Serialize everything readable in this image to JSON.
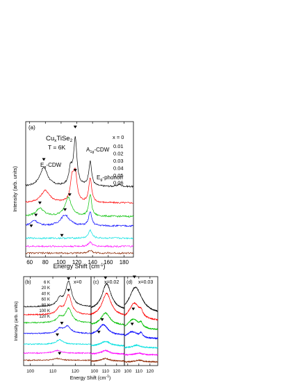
{
  "chart_data": [
    {
      "type": "line",
      "panel_label": "(a)",
      "annotations": {
        "compound": {
          "base": "Cu",
          "sub": "x",
          "rest": "TiSe",
          "sub2": "2"
        },
        "temperature": "T = 6K",
        "eg_cdw": {
          "base": "E",
          "sub": "g",
          "rest": "-CDW"
        },
        "a1g_cdw": {
          "base": "A",
          "sub": "1g",
          "rest": "-CDW"
        },
        "eg_phonon": {
          "base": "E",
          "sub": "g",
          "rest": "-phonon"
        }
      },
      "xlabel": {
        "base": "Energy Shift (cm",
        "sup": "-1",
        "rest": ")"
      },
      "ylabel": "Intensity (arb. units)",
      "xlim": [
        55,
        192
      ],
      "ylim": [
        0,
        1
      ],
      "xticks": [
        60,
        80,
        100,
        120,
        140,
        160,
        180
      ],
      "legend_title": "x = 0",
      "series": [
        {
          "name": "0.01",
          "color": "#000000",
          "baseline": 0.52,
          "peaks": [
            [
              78,
              0.14,
              6
            ],
            [
              112,
              0.12,
              2.5
            ],
            [
              118,
              0.35,
              2.5
            ],
            [
              137,
              0.18,
              2.2
            ],
            [
              174,
              0.015,
              3
            ]
          ],
          "arrows": [
            [
              78,
              0.71
            ],
            [
              118,
              0.95
            ]
          ]
        },
        {
          "name": "0.02",
          "color": "#ff0000",
          "baseline": 0.4,
          "peaks": [
            [
              80,
              0.09,
              7
            ],
            [
              114,
              0.16,
              2.8
            ],
            [
              118,
              0.2,
              2.6
            ],
            [
              137,
              0.18,
              2.2
            ]
          ],
          "arrows": [
            [
              118,
              0.63
            ]
          ]
        },
        {
          "name": "0.03",
          "color": "#00c000",
          "baseline": 0.3,
          "peaks": [
            [
              73,
              0.06,
              6
            ],
            [
              109,
              0.14,
              5
            ],
            [
              137,
              0.16,
              2.2
            ]
          ],
          "arrows": [
            [
              73,
              0.39
            ],
            [
              111,
              0.45
            ]
          ]
        },
        {
          "name": "0.04",
          "color": "#0000ff",
          "baseline": 0.23,
          "peaks": [
            [
              66,
              0.04,
              5
            ],
            [
              105,
              0.08,
              7
            ],
            [
              137,
              0.1,
              2.4
            ]
          ],
          "arrows": [
            [
              68,
              0.3
            ],
            [
              105,
              0.34
            ]
          ]
        },
        {
          "name": "0.05",
          "color": "#00e0e0",
          "baseline": 0.14,
          "peaks": [
            [
              137,
              0.06,
              2.6
            ]
          ],
          "arrows": [
            [
              62,
              0.22
            ]
          ]
        },
        {
          "name": "0.06",
          "color": "#ff00ff",
          "baseline": 0.08,
          "peaks": [
            [
              137,
              0.03,
              3
            ]
          ],
          "arrows": [
            [
              101,
              0.15
            ]
          ]
        },
        {
          "name": "",
          "color": "#8b2500",
          "baseline": 0.03,
          "peaks": [
            [
              137,
              0.02,
              3
            ]
          ],
          "arrows": []
        }
      ]
    },
    {
      "type": "line",
      "panel_label": "(b)",
      "legend_title": "x=0",
      "xlim": [
        97,
        127
      ],
      "ylim": [
        0,
        1
      ],
      "xticks": [
        100,
        110,
        120
      ],
      "ylabel": "Intensity (arb. units)",
      "series": [
        {
          "name": "6 K",
          "color": "#000000",
          "baseline": 0.66,
          "peaks": [
            [
              113,
              0.08,
              1.5
            ],
            [
              117,
              0.28,
              1.6
            ]
          ],
          "arrows": [
            [
              117,
              0.96
            ]
          ]
        },
        {
          "name": "20 K",
          "color": "#ff0000",
          "baseline": 0.57,
          "peaks": [
            [
              113,
              0.07,
              1.5
            ],
            [
              117,
              0.22,
              1.6
            ]
          ],
          "arrows": [
            [
              117,
              0.83
            ]
          ]
        },
        {
          "name": "40 K",
          "color": "#00c000",
          "baseline": 0.48,
          "peaks": [
            [
              113,
              0.06,
              1.5
            ],
            [
              117,
              0.16,
              1.7
            ]
          ],
          "arrows": []
        },
        {
          "name": "60 K",
          "color": "#0000ff",
          "baseline": 0.36,
          "peaks": [
            [
              113,
              0.05,
              1.5
            ],
            [
              116.5,
              0.08,
              1.8
            ]
          ],
          "arrows": [
            [
              114,
              0.46
            ]
          ]
        },
        {
          "name": "80 K",
          "color": "#00e0e0",
          "baseline": 0.24,
          "peaks": [
            [
              113,
              0.05,
              1.8
            ]
          ],
          "arrows": [
            [
              112,
              0.33
            ]
          ]
        },
        {
          "name": "100 K",
          "color": "#ff00ff",
          "baseline": 0.14,
          "peaks": [
            [
              112,
              0.03,
              2
            ]
          ],
          "arrows": []
        },
        {
          "name": "120 K",
          "color": "#8b2500",
          "baseline": 0.06,
          "peaks": [
            [
              112,
              0.02,
              2
            ]
          ],
          "arrows": [
            [
              113,
              0.12
            ]
          ]
        }
      ]
    },
    {
      "type": "line",
      "panel_label": "(c)",
      "legend_title": "x=0.02",
      "xlim": [
        97,
        127
      ],
      "ylim": [
        0,
        1
      ],
      "xticks": [
        100,
        110,
        120
      ],
      "series": [
        {
          "name": "",
          "color": "#000000",
          "baseline": 0.62,
          "peaks": [
            [
              111,
              0.3,
              5
            ]
          ],
          "arrows": [
            [
              110,
              0.97
            ]
          ]
        },
        {
          "name": "",
          "color": "#ff0000",
          "baseline": 0.55,
          "peaks": [
            [
              111,
              0.26,
              5
            ]
          ],
          "arrows": []
        },
        {
          "name": "",
          "color": "#00c000",
          "baseline": 0.45,
          "peaks": [
            [
              110,
              0.14,
              5
            ]
          ],
          "arrows": []
        },
        {
          "name": "",
          "color": "#0000ff",
          "baseline": 0.34,
          "peaks": [
            [
              108,
              0.12,
              5
            ]
          ],
          "arrows": [
            [
              107,
              0.5
            ]
          ]
        },
        {
          "name": "",
          "color": "#00e0e0",
          "baseline": 0.22,
          "peaks": [
            [
              110,
              0.05,
              5
            ]
          ],
          "arrows": [
            [
              104,
              0.36
            ]
          ]
        },
        {
          "name": "",
          "color": "#ff00ff",
          "baseline": 0.13,
          "peaks": [
            [
              110,
              0.04,
              4
            ]
          ],
          "arrows": []
        },
        {
          "name": "",
          "color": "#8b2500",
          "baseline": 0.05,
          "peaks": [
            [
              110,
              0.03,
              4
            ]
          ],
          "arrows": []
        }
      ]
    },
    {
      "type": "line",
      "panel_label": "(d)",
      "legend_title": "x=0.03",
      "xlim": [
        97,
        127
      ],
      "ylim": [
        0,
        1
      ],
      "xticks": [
        100,
        110,
        120
      ],
      "series": [
        {
          "name": "",
          "color": "#000000",
          "baseline": 0.58,
          "peaks": [
            [
              107,
              0.3,
              7
            ]
          ],
          "arrows": [
            [
              106,
              0.98
            ]
          ]
        },
        {
          "name": "",
          "color": "#ff0000",
          "baseline": 0.5,
          "peaks": [
            [
              106,
              0.2,
              6
            ],
            [
              112,
              0.05,
              1.5
            ]
          ],
          "arrows": []
        },
        {
          "name": "",
          "color": "#00c000",
          "baseline": 0.4,
          "peaks": [
            [
              105,
              0.12,
              6
            ],
            [
              112,
              0.05,
              1.5
            ]
          ],
          "arrows": [
            [
              105,
              0.62
            ]
          ]
        },
        {
          "name": "",
          "color": "#0000ff",
          "baseline": 0.3,
          "peaks": [
            [
              104,
              0.08,
              6
            ],
            [
              112,
              0.05,
              1.5
            ]
          ],
          "arrows": [
            [
              104,
              0.45
            ]
          ]
        },
        {
          "name": "",
          "color": "#00e0e0",
          "baseline": 0.2,
          "peaks": [
            [
              108,
              0.03,
              4
            ]
          ],
          "arrows": []
        },
        {
          "name": "",
          "color": "#ff00ff",
          "baseline": 0.12,
          "peaks": [
            [
              110,
              0.02,
              4
            ]
          ],
          "arrows": []
        },
        {
          "name": "",
          "color": "#8b2500",
          "baseline": 0.04,
          "peaks": [
            [
              110,
              0.02,
              4
            ]
          ],
          "arrows": []
        }
      ]
    }
  ],
  "bottom_xlabel": {
    "base": "Energy Shift (cm",
    "sup": "-1",
    "rest": ")"
  },
  "bottom_ylabel": "Intensity (arb. units)"
}
